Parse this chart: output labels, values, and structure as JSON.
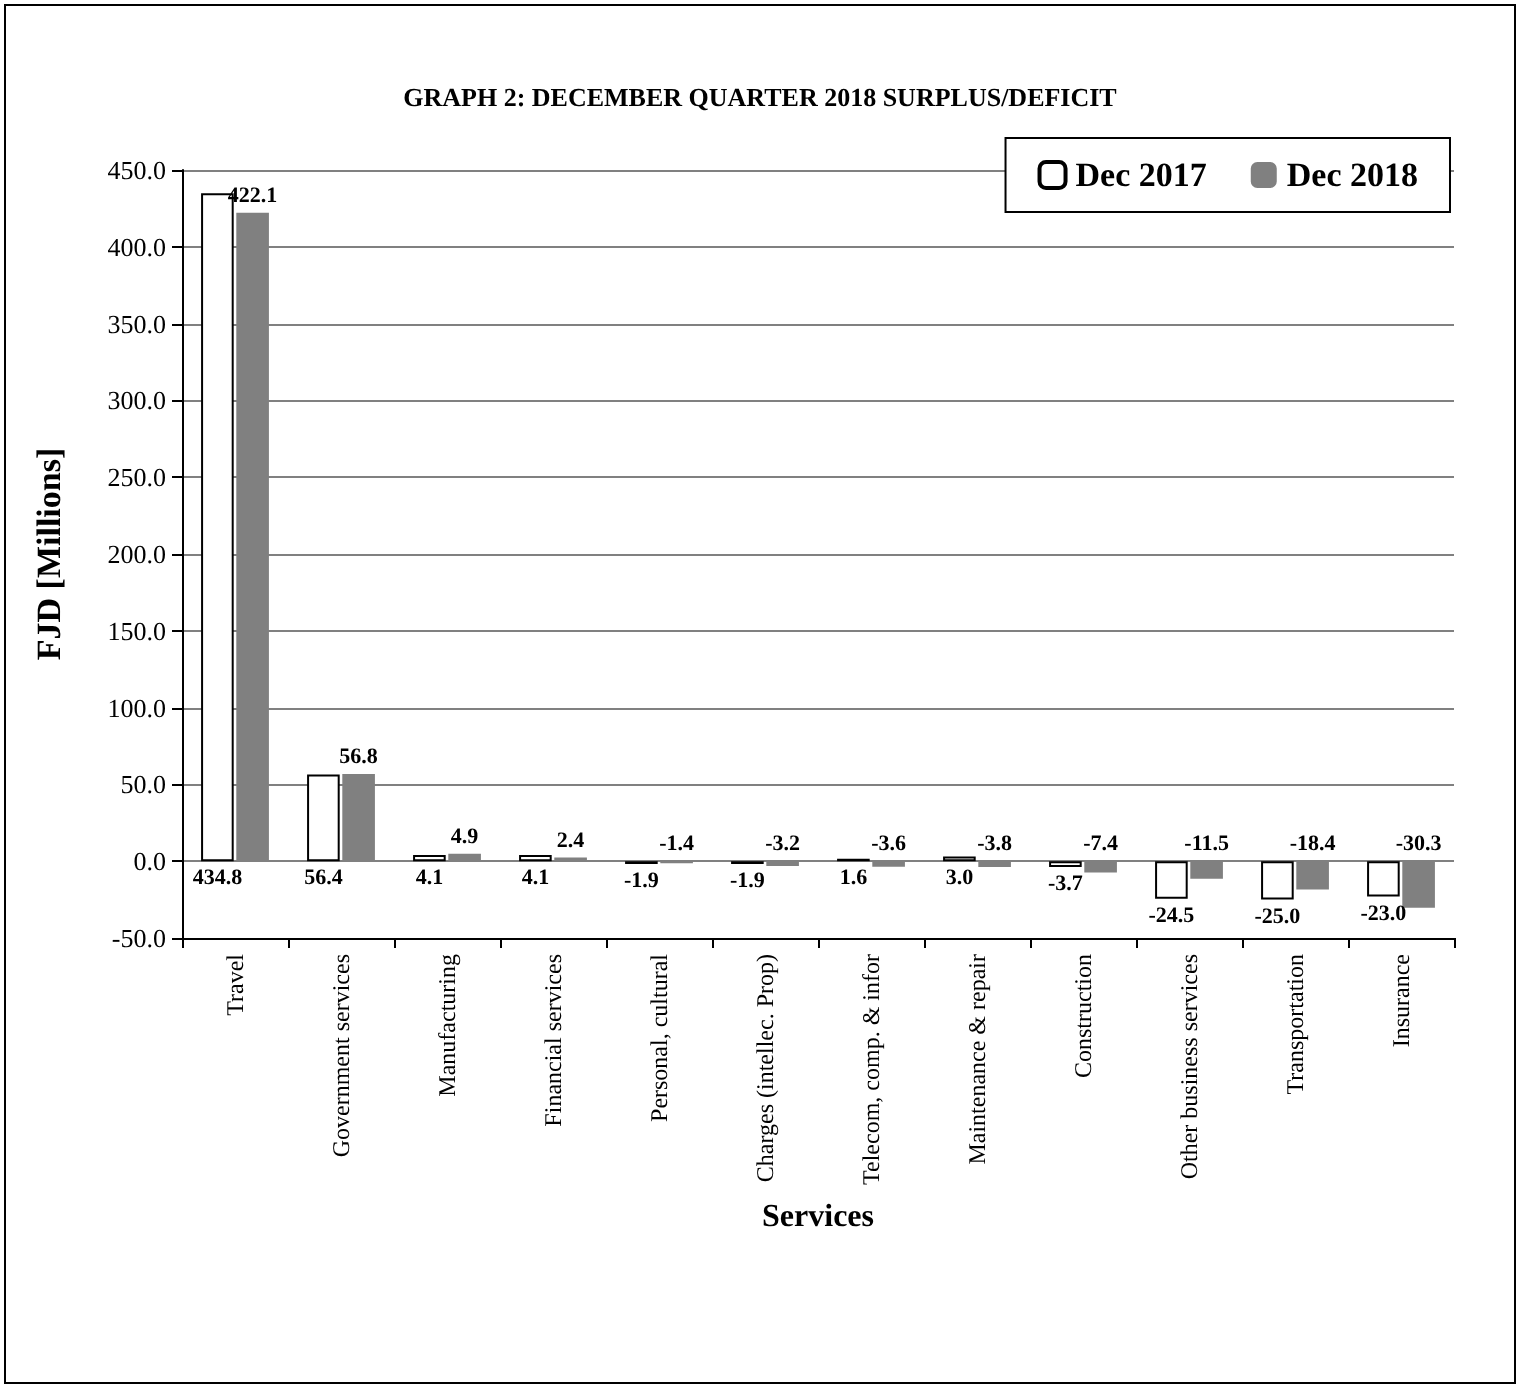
{
  "chart_data": {
    "type": "bar",
    "title": "GRAPH 2: DECEMBER QUARTER 2018 SURPLUS/DEFICIT",
    "xlabel": "Services",
    "ylabel": "FJD [Millions]",
    "categories": [
      "Travel",
      "Government services",
      "Manufacturing",
      "Financial services",
      "Personal, cultural",
      "Charges (intellec. Prop)",
      "Telecom, comp. & infor",
      "Maintenance & repair",
      "Construction",
      "Other business services",
      "Transportation",
      "Insurance"
    ],
    "series": [
      {
        "name": "Dec 2017",
        "color": "#ffffff",
        "values": [
          434.8,
          56.4,
          4.1,
          4.1,
          -1.9,
          -1.9,
          1.6,
          3.0,
          -3.7,
          -24.5,
          -25.0,
          -23.0
        ],
        "value_labels": [
          "434.8",
          "56.4",
          "4.1",
          "4.1",
          "-1.9",
          "-1.9",
          "1.6",
          "3.0",
          "-3.7",
          "-24.5",
          "-25.0",
          "-23.0"
        ]
      },
      {
        "name": "Dec 2018",
        "color": "#808080",
        "values": [
          422.1,
          56.8,
          4.9,
          2.4,
          -1.4,
          -3.2,
          -3.6,
          -3.8,
          -7.4,
          -11.5,
          -18.4,
          -30.3
        ],
        "value_labels": [
          "422.1",
          "56.8",
          "4.9",
          "2.4",
          "-1.4",
          "-3.2",
          "-3.6",
          "-3.8",
          "-7.4",
          "-11.5",
          "-18.4",
          "-30.3"
        ]
      }
    ],
    "ylim": [
      -50,
      450
    ],
    "yticks": [
      {
        "value": -50,
        "label": "-50.0"
      },
      {
        "value": 0,
        "label": "0.0"
      },
      {
        "value": 50,
        "label": "50.0"
      },
      {
        "value": 100,
        "label": "100.0"
      },
      {
        "value": 150,
        "label": "150.0"
      },
      {
        "value": 200,
        "label": "200.0"
      },
      {
        "value": 250,
        "label": "250.0"
      },
      {
        "value": 300,
        "label": "300.0"
      },
      {
        "value": 350,
        "label": "350.0"
      },
      {
        "value": 400,
        "label": "400.0"
      },
      {
        "value": 450,
        "label": "450.0"
      }
    ],
    "grid": "y",
    "legend": "top right"
  }
}
